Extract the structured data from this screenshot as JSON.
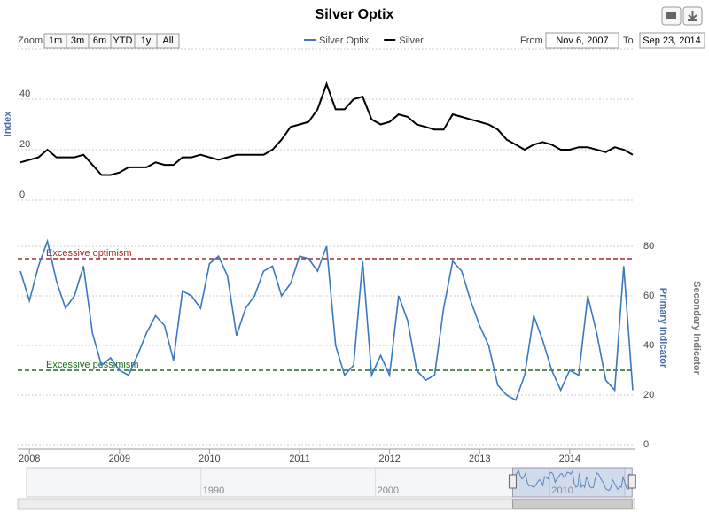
{
  "controls": {
    "zoom_label": "Zoom",
    "buttons": [
      "1m",
      "3m",
      "6m",
      "YTD",
      "1y",
      "All"
    ],
    "from_label": "From",
    "from": "Nov 6, 2007",
    "to_label": "To",
    "to": "Sep 23, 2014"
  },
  "chart_data": {
    "type": "line",
    "title": "Silver Optix",
    "y_label": "Index",
    "y2_label": "Primary Indicator",
    "y3_label": "Secondary Indicator",
    "x": [
      2007.9,
      2008.0,
      2008.1,
      2008.2,
      2008.3,
      2008.4,
      2008.5,
      2008.6,
      2008.7,
      2008.8,
      2008.9,
      2009.0,
      2009.1,
      2009.2,
      2009.3,
      2009.4,
      2009.5,
      2009.6,
      2009.7,
      2009.8,
      2009.9,
      2010.0,
      2010.1,
      2010.2,
      2010.3,
      2010.4,
      2010.5,
      2010.6,
      2010.7,
      2010.8,
      2010.9,
      2011.0,
      2011.1,
      2011.2,
      2011.3,
      2011.4,
      2011.5,
      2011.6,
      2011.7,
      2011.8,
      2011.9,
      2012.0,
      2012.1,
      2012.2,
      2012.3,
      2012.4,
      2012.5,
      2012.6,
      2012.7,
      2012.8,
      2012.9,
      2013.0,
      2013.1,
      2013.2,
      2013.3,
      2013.4,
      2013.5,
      2013.6,
      2013.7,
      2013.8,
      2013.9,
      2014.0,
      2014.1,
      2014.2,
      2014.3,
      2014.4,
      2014.5,
      2014.6,
      2014.7
    ],
    "xlim": [
      2007.87,
      2014.72
    ],
    "xticks": [
      2008,
      2009,
      2010,
      2011,
      2012,
      2013,
      2014
    ],
    "ylim": [
      0,
      60
    ],
    "yticks": [
      0,
      20,
      40
    ],
    "y2lim": [
      0,
      85
    ],
    "y2ticks": [
      0,
      20,
      40,
      60,
      80
    ],
    "grid": true,
    "series": [
      {
        "name": "Silver Optix",
        "color": "#3a78c0",
        "axis": "y2",
        "values": [
          70,
          58,
          72,
          82,
          66,
          55,
          60,
          72,
          45,
          32,
          35,
          30,
          28,
          36,
          45,
          52,
          48,
          34,
          62,
          60,
          55,
          73,
          76,
          68,
          44,
          55,
          60,
          70,
          72,
          60,
          65,
          76,
          75,
          70,
          80,
          40,
          28,
          32,
          74,
          28,
          36,
          28,
          60,
          50,
          30,
          26,
          28,
          55,
          74,
          70,
          58,
          48,
          40,
          24,
          20,
          18,
          28,
          52,
          42,
          30,
          22,
          30,
          28,
          60,
          45,
          26,
          22,
          72,
          22
        ]
      },
      {
        "name": "Silver",
        "color": "#000000",
        "axis": "y",
        "values": [
          15,
          16,
          17,
          20,
          17,
          17,
          17,
          18,
          14,
          10,
          10,
          11,
          13,
          13,
          13,
          15,
          14,
          14,
          17,
          17,
          18,
          17,
          16,
          17,
          18,
          18,
          18,
          18,
          20,
          24,
          29,
          30,
          31,
          36,
          46,
          36,
          36,
          40,
          41,
          32,
          30,
          31,
          34,
          33,
          30,
          29,
          28,
          28,
          34,
          33,
          32,
          31,
          30,
          28,
          24,
          22,
          20,
          22,
          23,
          22,
          20,
          20,
          21,
          21,
          20,
          19,
          21,
          20,
          18
        ]
      }
    ],
    "thresholds": [
      {
        "value": 75,
        "label": "Excessive optimism",
        "color": "#a52a2a",
        "axis": "y2"
      },
      {
        "value": 30,
        "label": "Excessive pessimism",
        "color": "#1e6b1e",
        "axis": "y2"
      }
    ],
    "navigator": {
      "xlim": [
        1980,
        2014.3
      ],
      "xticks": [
        1990,
        2000,
        2010
      ]
    }
  }
}
